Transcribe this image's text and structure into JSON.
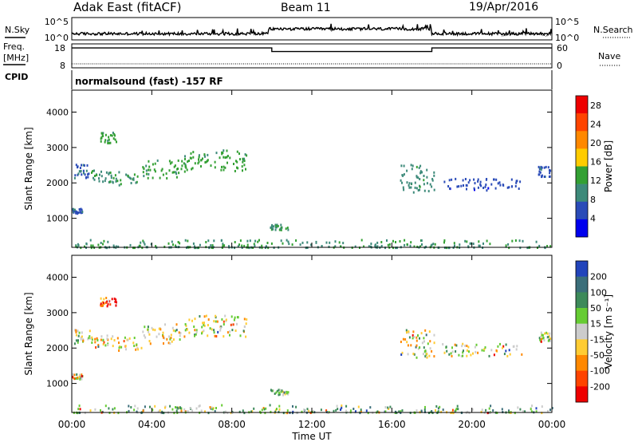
{
  "header": {
    "station": "Adak East (fitACF)",
    "beam": "Beam 11",
    "date": "19/Apr/2016"
  },
  "side_labels": {
    "nsky": "N.Sky",
    "nsearch": "N.Search",
    "freq_line1": "Freq.",
    "freq_line2": "[MHz]",
    "nave": "Nave",
    "cpid": "CPID"
  },
  "noise_panel": {
    "left_ticks": [
      "10^5",
      "10^0"
    ],
    "right_ticks": [
      "10^5",
      "10^0"
    ]
  },
  "freq_panel": {
    "left_ticks": [
      "18",
      "8"
    ],
    "right_ticks": [
      "60",
      "0"
    ],
    "freq_ylim": [
      8,
      18
    ],
    "nave_ylim": [
      0,
      60
    ],
    "freq_segments": [
      {
        "start": 0.0,
        "end": 10.0,
        "value": 16.3
      },
      {
        "start": 10.0,
        "end": 18.0,
        "value": 14.8
      },
      {
        "start": 18.0,
        "end": 24.0,
        "value": 16.3
      }
    ],
    "nave_value": 10
  },
  "cpid_text": "normalsound (fast) -157 RF",
  "colors": {
    "background": "#ffffff",
    "axis": "#000000"
  },
  "chart_data": [
    {
      "type": "heatmap",
      "name": "power",
      "ylabel": "Slant Range [km]",
      "ylim": [
        180,
        4620
      ],
      "yticks": [
        "1000",
        "2000",
        "3000",
        "4000"
      ],
      "xlim": [
        0,
        24
      ],
      "xticks": [
        "00:00",
        "04:00",
        "08:00",
        "12:00",
        "16:00",
        "20:00",
        "00:00"
      ],
      "colorbar": {
        "label": "Power [dB]",
        "ticks": [
          "4",
          "8",
          "12",
          "16",
          "20",
          "24",
          "28"
        ],
        "range": [
          0,
          30
        ],
        "colors": [
          "#0000ee",
          "#2a4bb8",
          "#3d8a7a",
          "#33a033",
          "#ffcc00",
          "#ff8800",
          "#ff4400",
          "#ee0000"
        ]
      },
      "regions": [
        {
          "t0": 0.1,
          "t1": 0.9,
          "r0": 2150,
          "r1": 2550,
          "level": 6
        },
        {
          "t0": 0.9,
          "t1": 2.0,
          "r0": 2050,
          "r1": 2400,
          "level": 9
        },
        {
          "t0": 2.0,
          "t1": 3.5,
          "r0": 1950,
          "r1": 2350,
          "level": 10
        },
        {
          "t0": 3.5,
          "t1": 5.5,
          "r0": 2150,
          "r1": 2700,
          "level": 12
        },
        {
          "t0": 5.5,
          "t1": 8.7,
          "r0": 2350,
          "r1": 2950,
          "level": 12
        },
        {
          "t0": 0.0,
          "t1": 0.5,
          "r0": 1150,
          "r1": 1300,
          "level": 5
        },
        {
          "t0": 9.9,
          "t1": 10.8,
          "r0": 700,
          "r1": 850,
          "level": 10
        },
        {
          "t0": 16.4,
          "t1": 18.1,
          "r0": 1750,
          "r1": 2550,
          "level": 9
        },
        {
          "t0": 18.5,
          "t1": 22.5,
          "r0": 1800,
          "r1": 2150,
          "level": 4
        },
        {
          "t0": 1.4,
          "t1": 2.2,
          "r0": 3150,
          "r1": 3450,
          "level": 12
        },
        {
          "t0": 23.3,
          "t1": 23.9,
          "r0": 2200,
          "r1": 2500,
          "level": 5
        },
        {
          "t0": 0.0,
          "t1": 24.0,
          "r0": 200,
          "r1": 420,
          "level": 10
        }
      ]
    },
    {
      "type": "heatmap",
      "name": "velocity",
      "ylabel": "Slant Range [km]",
      "ylim": [
        180,
        4620
      ],
      "yticks": [
        "1000",
        "2000",
        "3000",
        "4000"
      ],
      "xlim": [
        0,
        24
      ],
      "xticks": [
        "00:00",
        "04:00",
        "08:00",
        "12:00",
        "16:00",
        "20:00",
        "00:00"
      ],
      "xlabel": "Time UT",
      "colorbar": {
        "label": "Velocity [m s⁻¹]",
        "ticks": [
          "200",
          "100",
          "50",
          "15",
          "-15",
          "-50",
          "-100",
          "-200"
        ],
        "range": [
          -250,
          250
        ],
        "colors": [
          "#2244bb",
          "#3b6e7a",
          "#3d8a5a",
          "#66cc33",
          "#cccccc",
          "#ffcc33",
          "#ff8800",
          "#ff4400",
          "#ee0000"
        ]
      },
      "regions": [
        {
          "t0": 0.1,
          "t1": 0.9,
          "r0": 2150,
          "r1": 2550,
          "level": 4
        },
        {
          "t0": 0.9,
          "t1": 2.0,
          "r0": 2050,
          "r1": 2400,
          "level": 4
        },
        {
          "t0": 2.0,
          "t1": 3.5,
          "r0": 1950,
          "r1": 2350,
          "level": 4
        },
        {
          "t0": 3.5,
          "t1": 5.5,
          "r0": 2150,
          "r1": 2700,
          "level": 4
        },
        {
          "t0": 5.5,
          "t1": 8.7,
          "r0": 2350,
          "r1": 2950,
          "level": 4
        },
        {
          "t0": 0.0,
          "t1": 0.5,
          "r0": 1150,
          "r1": 1300,
          "level": 4
        },
        {
          "t0": 9.9,
          "t1": 10.8,
          "r0": 700,
          "r1": 850,
          "level": 3
        },
        {
          "t0": 16.4,
          "t1": 18.1,
          "r0": 1750,
          "r1": 2550,
          "level": 4
        },
        {
          "t0": 18.5,
          "t1": 22.5,
          "r0": 1800,
          "r1": 2150,
          "level": 4
        },
        {
          "t0": 1.4,
          "t1": 2.2,
          "r0": 3150,
          "r1": 3450,
          "level": 7
        },
        {
          "t0": 23.3,
          "t1": 23.9,
          "r0": 2200,
          "r1": 2500,
          "level": 4
        },
        {
          "t0": 0.0,
          "t1": 24.0,
          "r0": 200,
          "r1": 420,
          "level": 3
        }
      ]
    }
  ]
}
